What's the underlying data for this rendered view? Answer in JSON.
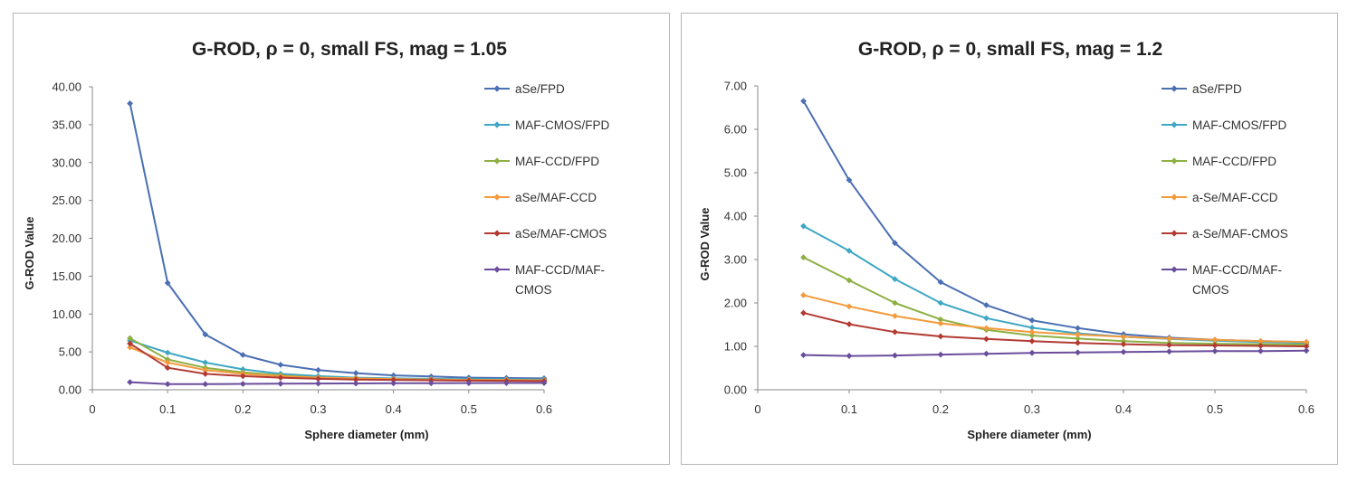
{
  "chart_data": [
    {
      "type": "line",
      "title": "G-ROD, ρ = 0, small FS, mag = 1.05",
      "xlabel": "Sphere diameter  (mm)",
      "ylabel": "G-ROD Value",
      "xlim": [
        0,
        0.6
      ],
      "ylim": [
        0,
        40
      ],
      "x_ticks": [
        "0",
        "0.1",
        "0.2",
        "0.3",
        "0.4",
        "0.5",
        "0.6"
      ],
      "y_ticks": [
        "0.00",
        "5.00",
        "10.00",
        "15.00",
        "20.00",
        "25.00",
        "30.00",
        "35.00",
        "40.00"
      ],
      "legend_position": "right",
      "grid": false,
      "x": [
        0.05,
        0.1,
        0.15,
        0.2,
        0.25,
        0.3,
        0.35,
        0.4,
        0.45,
        0.5,
        0.55,
        0.6
      ],
      "series": [
        {
          "name": "aSe/FPD",
          "color": "#4a6fb3",
          "values": [
            37.8,
            14.1,
            7.3,
            4.6,
            3.3,
            2.6,
            2.2,
            1.9,
            1.75,
            1.6,
            1.55,
            1.5
          ]
        },
        {
          "name": "MAF-CMOS/FPD",
          "color": "#3fa7c4",
          "values": [
            6.5,
            4.9,
            3.6,
            2.7,
            2.1,
            1.8,
            1.6,
            1.5,
            1.45,
            1.4,
            1.38,
            1.35
          ]
        },
        {
          "name": "MAF-CCD/FPD",
          "color": "#8db043",
          "values": [
            6.8,
            4.0,
            2.9,
            2.3,
            1.9,
            1.6,
            1.5,
            1.4,
            1.35,
            1.3,
            1.28,
            1.25
          ]
        },
        {
          "name": "aSe/MAF-CCD",
          "color": "#f39a3b",
          "values": [
            5.6,
            3.6,
            2.6,
            2.1,
            1.8,
            1.6,
            1.5,
            1.4,
            1.35,
            1.3,
            1.28,
            1.25
          ]
        },
        {
          "name": "aSe/MAF-CMOS",
          "color": "#b23b33",
          "values": [
            6.1,
            2.9,
            2.1,
            1.8,
            1.6,
            1.45,
            1.35,
            1.3,
            1.25,
            1.2,
            1.18,
            1.15
          ]
        },
        {
          "name": "MAF-CCD/MAF-CMOS",
          "color": "#6a4d9c",
          "values": [
            1.0,
            0.75,
            0.75,
            0.78,
            0.8,
            0.82,
            0.84,
            0.86,
            0.87,
            0.88,
            0.89,
            0.9
          ]
        }
      ]
    },
    {
      "type": "line",
      "title": "G-ROD, ρ = 0, small FS, mag = 1.2",
      "xlabel": "Sphere diameter  (mm)",
      "ylabel": "G-ROD Value",
      "xlim": [
        0,
        0.6
      ],
      "ylim": [
        0,
        7
      ],
      "x_ticks": [
        "0",
        "0.1",
        "0.2",
        "0.3",
        "0.4",
        "0.5",
        "0.6"
      ],
      "y_ticks": [
        "0.00",
        "1.00",
        "2.00",
        "3.00",
        "4.00",
        "5.00",
        "6.00",
        "7.00"
      ],
      "legend_position": "right",
      "grid": false,
      "x": [
        0.05,
        0.1,
        0.15,
        0.2,
        0.25,
        0.3,
        0.35,
        0.4,
        0.45,
        0.5,
        0.55,
        0.6
      ],
      "series": [
        {
          "name": "aSe/FPD",
          "color": "#4a6fb3",
          "values": [
            6.65,
            4.83,
            3.38,
            2.48,
            1.95,
            1.6,
            1.42,
            1.28,
            1.2,
            1.15,
            1.12,
            1.1
          ]
        },
        {
          "name": "MAF-CMOS/FPD",
          "color": "#3fa7c4",
          "values": [
            3.77,
            3.2,
            2.55,
            2.0,
            1.65,
            1.43,
            1.3,
            1.22,
            1.17,
            1.13,
            1.1,
            1.08
          ]
        },
        {
          "name": "MAF-CCD/FPD",
          "color": "#8db043",
          "values": [
            3.05,
            2.52,
            2.0,
            1.62,
            1.38,
            1.25,
            1.18,
            1.12,
            1.08,
            1.06,
            1.05,
            1.04
          ]
        },
        {
          "name": "a-Se/MAF-CCD",
          "color": "#f39a3b",
          "values": [
            2.18,
            1.92,
            1.7,
            1.53,
            1.42,
            1.33,
            1.27,
            1.22,
            1.18,
            1.15,
            1.12,
            1.1
          ]
        },
        {
          "name": "a-Se/MAF-CMOS",
          "color": "#b23b33",
          "values": [
            1.77,
            1.51,
            1.33,
            1.23,
            1.17,
            1.12,
            1.08,
            1.05,
            1.03,
            1.02,
            1.01,
            1.0
          ]
        },
        {
          "name": "MAF-CCD/MAF-CMOS",
          "color": "#6a4d9c",
          "values": [
            0.8,
            0.78,
            0.79,
            0.81,
            0.83,
            0.85,
            0.86,
            0.87,
            0.88,
            0.89,
            0.89,
            0.9
          ]
        }
      ]
    }
  ]
}
